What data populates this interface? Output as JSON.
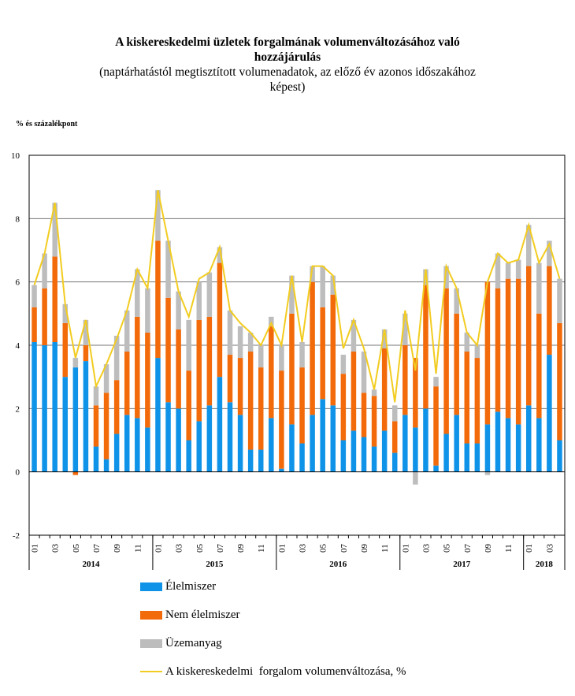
{
  "chart_data": {
    "type": "bar",
    "stacked": true,
    "title": "A kiskereskedelmi üzletek forgalmának volumenváltozásához való hozzájárulás",
    "title_lines": [
      "A kiskereskedelmi üzletek forgalmának volumenváltozásához való",
      "hozzájárulás"
    ],
    "subtitle_lines": [
      "(naptárhatástól megtisztított volumenadatok, az előző év azonos időszakához",
      "képest)"
    ],
    "ylabel": "% és százalékpont",
    "ylim": [
      -2,
      10
    ],
    "yticks": [
      -2,
      0,
      2,
      4,
      6,
      8,
      10
    ],
    "grid": true,
    "legend_position": "bottom",
    "years": [
      "2014",
      "2015",
      "2016",
      "2017",
      "2018"
    ],
    "months_per_year": [
      12,
      12,
      12,
      12,
      4
    ],
    "month_tick_labels": [
      "01",
      "03",
      "05",
      "07",
      "09",
      "11"
    ],
    "series": [
      {
        "name": "Élelmiszer",
        "type": "bar",
        "color": "#0f93e8",
        "values": [
          4.1,
          4.0,
          4.1,
          3.0,
          3.3,
          3.5,
          0.8,
          0.4,
          1.2,
          1.8,
          1.7,
          1.4,
          3.6,
          2.2,
          2.0,
          1.0,
          1.6,
          2.1,
          3.0,
          2.2,
          1.8,
          0.7,
          0.7,
          1.7,
          0.1,
          1.5,
          0.9,
          1.8,
          2.3,
          2.1,
          1.0,
          1.3,
          1.1,
          0.8,
          1.3,
          0.6,
          1.8,
          1.4,
          2.0,
          0.2,
          1.2,
          1.8,
          0.9,
          0.9,
          1.5,
          1.9,
          1.7,
          1.5,
          2.1,
          1.7,
          3.7,
          1.0
        ]
      },
      {
        "name": "Nem élelmiszer",
        "type": "bar",
        "color": "#f26a0a",
        "values": [
          1.1,
          1.8,
          2.7,
          1.7,
          -0.1,
          0.5,
          1.3,
          2.1,
          1.7,
          2.0,
          3.2,
          3.0,
          3.7,
          3.3,
          2.5,
          2.2,
          3.2,
          2.8,
          3.6,
          1.5,
          1.8,
          3.1,
          2.6,
          2.9,
          3.1,
          3.5,
          2.4,
          4.2,
          2.9,
          3.5,
          2.1,
          2.5,
          1.4,
          1.6,
          2.6,
          1.0,
          2.2,
          2.2,
          3.9,
          2.5,
          4.6,
          3.2,
          2.9,
          2.7,
          4.5,
          3.9,
          4.4,
          4.6,
          4.4,
          3.3,
          2.8,
          3.7
        ]
      },
      {
        "name": "Üzemanyag",
        "type": "bar",
        "color": "#bdbdbd",
        "values": [
          0.7,
          1.1,
          1.7,
          0.6,
          0.3,
          0.8,
          0.6,
          0.9,
          1.4,
          1.3,
          1.5,
          1.4,
          1.6,
          1.8,
          1.2,
          1.6,
          1.2,
          1.4,
          0.5,
          1.4,
          1.0,
          0.6,
          0.7,
          0.3,
          0.8,
          1.2,
          0.8,
          0.5,
          1.3,
          0.6,
          0.6,
          1.0,
          1.3,
          0.2,
          0.6,
          0.5,
          1.0,
          -0.4,
          0.5,
          0.3,
          0.7,
          0.8,
          0.6,
          0.4,
          -0.1,
          1.1,
          0.5,
          0.6,
          1.3,
          1.6,
          0.8,
          1.4
        ]
      },
      {
        "name": "A kiskereskedelmi  forgalom volumenváltozása, %",
        "type": "line",
        "color": "#f2cc20",
        "values": [
          5.9,
          6.9,
          8.5,
          5.3,
          3.6,
          4.8,
          2.7,
          3.4,
          4.2,
          5.1,
          6.4,
          5.8,
          8.9,
          7.3,
          5.7,
          4.9,
          6.1,
          6.3,
          7.1,
          5.1,
          4.7,
          4.4,
          4.0,
          4.7,
          4.0,
          6.2,
          4.1,
          6.5,
          6.5,
          6.2,
          3.9,
          4.8,
          3.9,
          2.6,
          4.5,
          2.2,
          5.1,
          3.2,
          6.4,
          3.1,
          6.5,
          5.8,
          4.4,
          4.0,
          6.0,
          6.9,
          6.6,
          6.7,
          7.8,
          6.6,
          7.2,
          6.1
        ]
      }
    ]
  }
}
